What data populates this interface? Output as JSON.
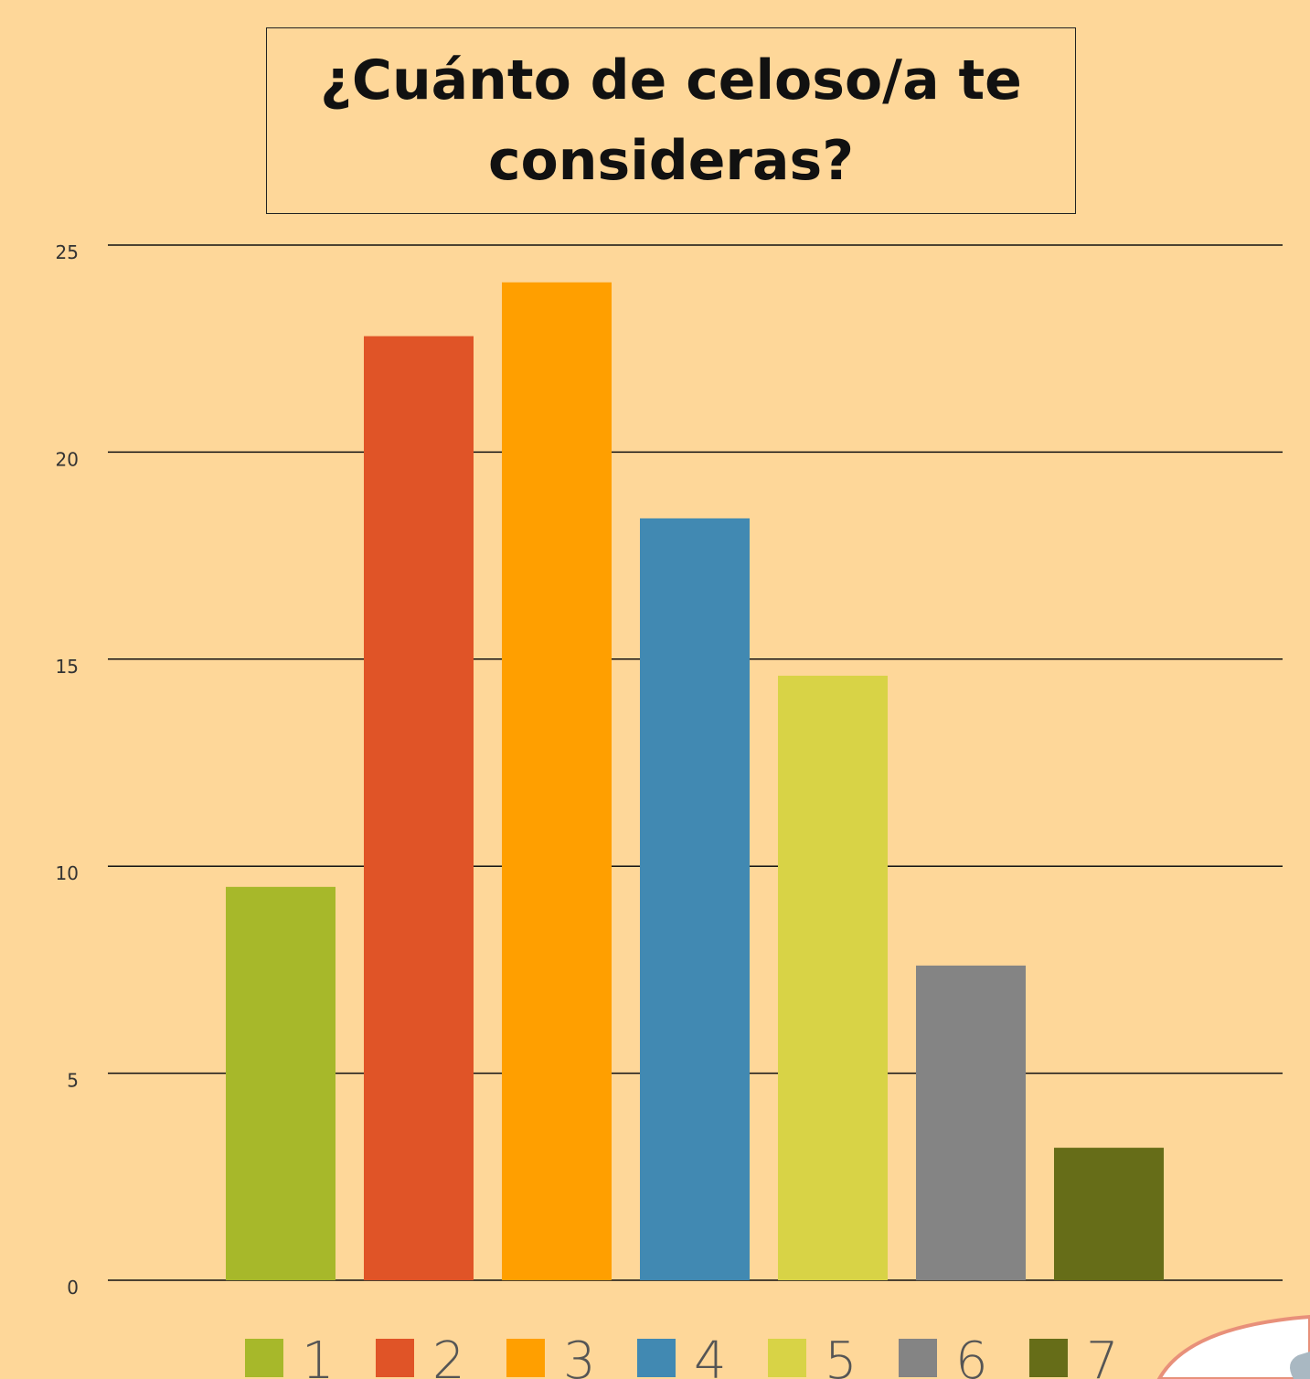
{
  "chart_data": {
    "type": "bar",
    "title": "¿Cuánto de celoso/a te consideras?",
    "categories": [
      "1",
      "2",
      "3",
      "4",
      "5",
      "6",
      "7"
    ],
    "values": [
      9.5,
      22.8,
      24.1,
      18.4,
      14.6,
      7.6,
      3.2
    ],
    "colors": [
      "#A7B82A",
      "#E05427",
      "#FF9F00",
      "#4189B2",
      "#D8D346",
      "#848484",
      "#666D18"
    ],
    "ylim": [
      0,
      25
    ],
    "yticks": [
      0,
      5,
      10,
      15,
      20,
      25
    ],
    "grid": true,
    "legend": "bottom"
  }
}
